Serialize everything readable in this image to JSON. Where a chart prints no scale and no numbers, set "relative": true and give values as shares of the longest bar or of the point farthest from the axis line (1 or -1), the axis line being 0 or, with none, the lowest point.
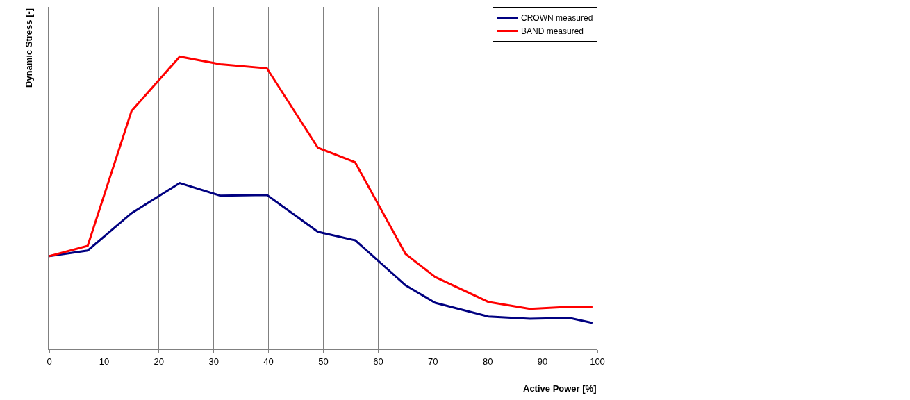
{
  "chart_data": {
    "type": "line",
    "relative": true,
    "xlabel": "Active Power [%]",
    "ylabel": "Dynamic Stress [-]",
    "x": [
      0,
      7,
      15,
      23.8,
      31.2,
      39.7,
      49,
      55.8,
      65,
      70.4,
      80.1,
      87.7,
      94.9,
      99.1
    ],
    "xlim": [
      0,
      100
    ],
    "xticks": [
      0,
      10,
      20,
      30,
      40,
      50,
      60,
      70,
      80,
      90,
      100
    ],
    "series": [
      {
        "name": "CROWN measured",
        "color": "#000080",
        "values": [
          0.317,
          0.336,
          0.464,
          0.567,
          0.524,
          0.526,
          0.4,
          0.371,
          0.217,
          0.157,
          0.11,
          0.102,
          0.105,
          0.088
        ]
      },
      {
        "name": "BAND measured",
        "color": "#ff0000",
        "values": [
          0.317,
          0.352,
          0.814,
          1,
          0.974,
          0.96,
          0.688,
          0.638,
          0.324,
          0.245,
          0.16,
          0.136,
          0.143,
          0.143
        ]
      }
    ],
    "grid": "x",
    "legend": "top right",
    "marker": "none",
    "line_style": "solid"
  }
}
